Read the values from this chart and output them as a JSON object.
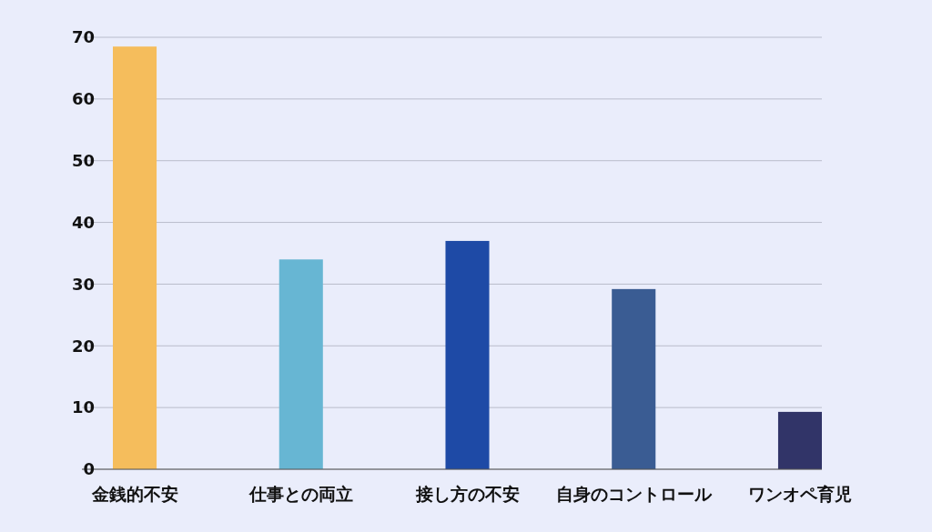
{
  "chart_data": {
    "type": "bar",
    "categories": [
      "金銭的不安",
      "仕事との両立",
      "接し方の不安",
      "自身のコントロール",
      "ワンオペ育児"
    ],
    "values": [
      68.5,
      34,
      37,
      29.2,
      9.3
    ],
    "colors": [
      "#f5bd5c",
      "#67b6d3",
      "#1e4aa6",
      "#3a5c93",
      "#313468"
    ],
    "ylim": [
      0,
      70
    ],
    "yticks": [
      0,
      10,
      20,
      30,
      40,
      50,
      60,
      70
    ],
    "grid": "y"
  }
}
